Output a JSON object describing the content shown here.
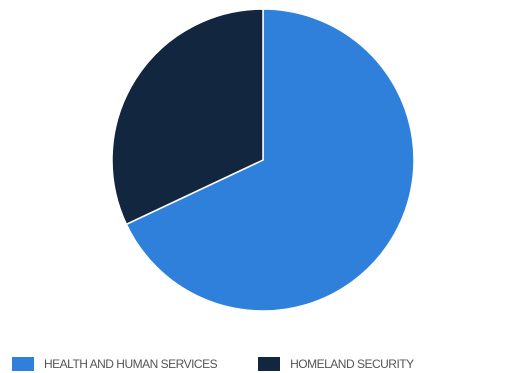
{
  "chart_data": {
    "type": "pie",
    "title": "",
    "series": [
      {
        "values": [
          68,
          32
        ]
      }
    ],
    "categories": [
      "HEALTH AND HUMAN SERVICES",
      "HOMELAND SECURITY"
    ],
    "colors": [
      "#2f80db",
      "#12263f"
    ],
    "legend": "bottom",
    "start_angle_degrees": 0,
    "direction": "clockwise"
  }
}
